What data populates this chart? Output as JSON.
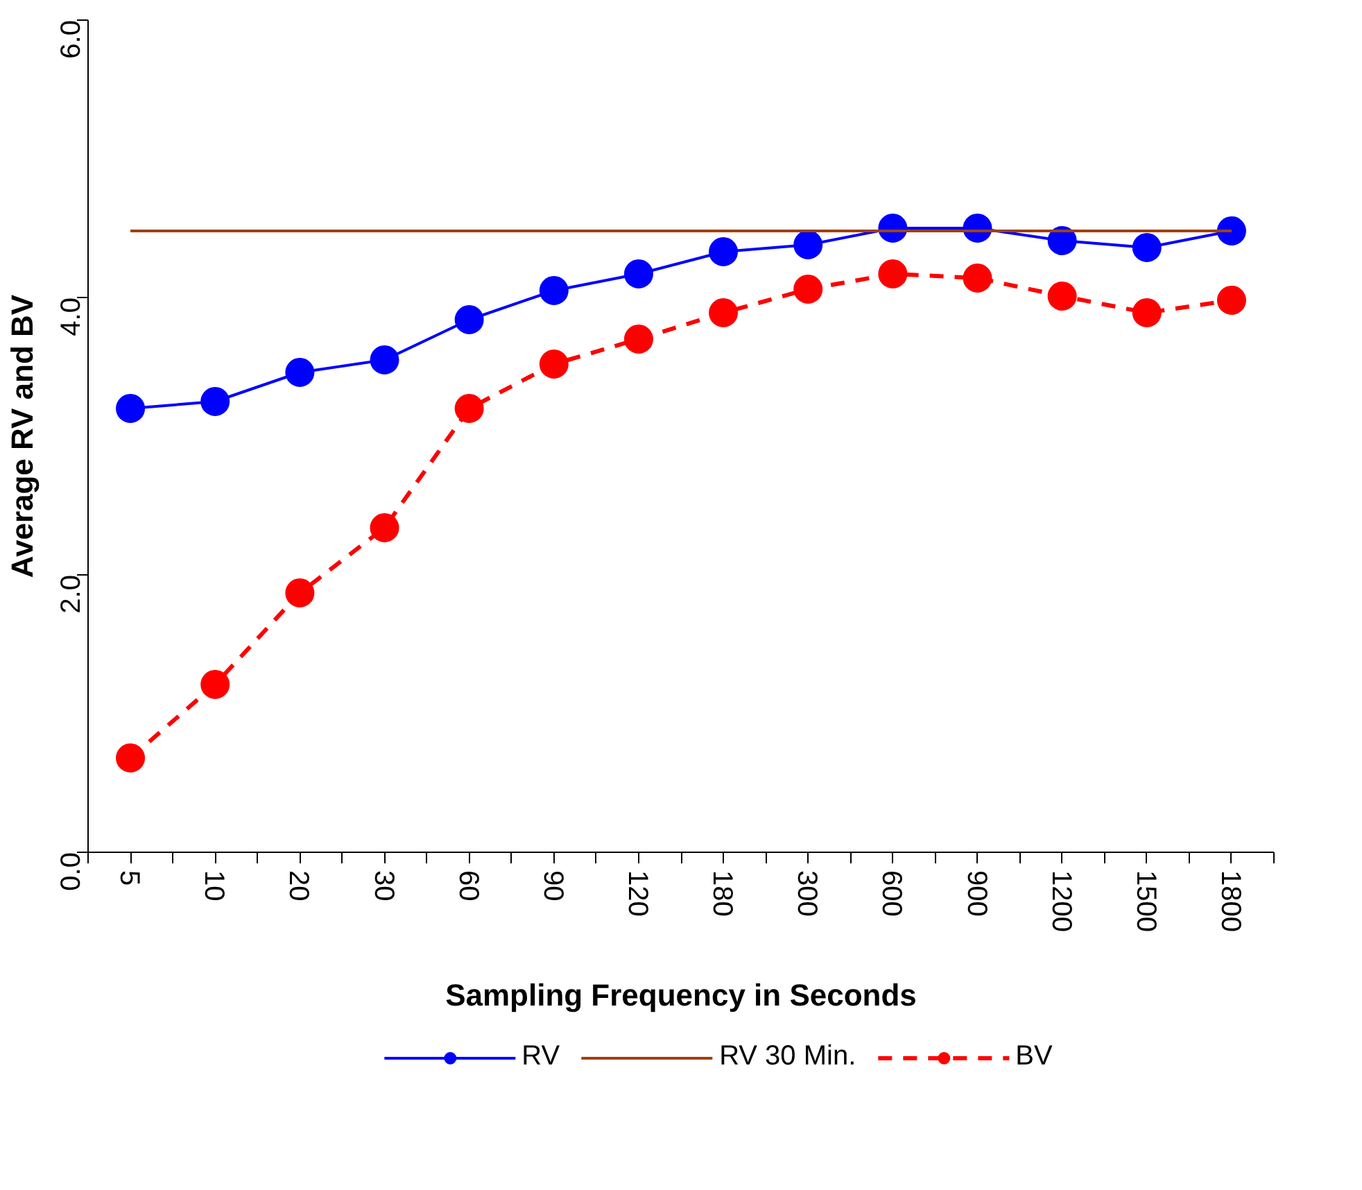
{
  "chart_data": {
    "type": "line",
    "xlabel": "Sampling Frequency in Seconds",
    "ylabel": "Average RV and BV",
    "categories": [
      "5",
      "10",
      "20",
      "30",
      "60",
      "90",
      "120",
      "180",
      "300",
      "600",
      "900",
      "1200",
      "1500",
      "1800"
    ],
    "ylim": [
      0,
      6
    ],
    "yticks": [
      {
        "value": 0,
        "label": "0.0"
      },
      {
        "value": 2,
        "label": "2.0"
      },
      {
        "value": 4,
        "label": "4.0"
      },
      {
        "value": 6,
        "label": "6.0"
      }
    ],
    "grid": false,
    "legend": "bottom",
    "series": [
      {
        "name": "RV",
        "color": "#0000ff",
        "marker": "circle",
        "line_style": "solid",
        "values": [
          3.2,
          3.25,
          3.46,
          3.55,
          3.84,
          4.05,
          4.17,
          4.33,
          4.38,
          4.5,
          4.5,
          4.41,
          4.36,
          4.48
        ]
      },
      {
        "name": "RV 30 Min.",
        "color": "#a0400f",
        "marker": "none",
        "line_style": "solid",
        "values": [
          4.48,
          4.48,
          4.48,
          4.48,
          4.48,
          4.48,
          4.48,
          4.48,
          4.48,
          4.48,
          4.48,
          4.48,
          4.48,
          4.48
        ]
      },
      {
        "name": "BV",
        "color": "#ff0000",
        "marker": "circle",
        "line_style": "dashed",
        "values": [
          0.68,
          1.21,
          1.87,
          2.34,
          3.2,
          3.52,
          3.7,
          3.89,
          4.06,
          4.17,
          4.14,
          4.01,
          3.89,
          3.98
        ]
      }
    ]
  }
}
